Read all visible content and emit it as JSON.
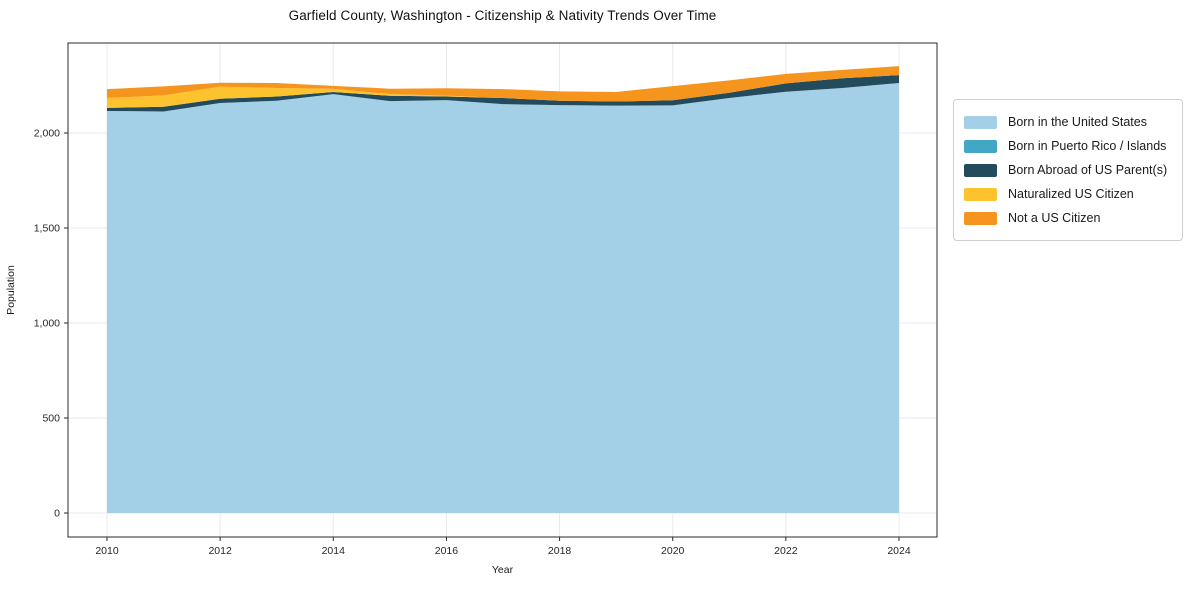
{
  "title": "Garfield County, Washington - Citizenship & Nativity Trends Over Time",
  "chart_data": {
    "type": "area",
    "stacked": true,
    "title": "Garfield County, Washington - Citizenship & Nativity Trends Over Time",
    "xlabel": "Year",
    "ylabel": "Population",
    "x": [
      2010,
      2011,
      2012,
      2013,
      2014,
      2015,
      2016,
      2017,
      2018,
      2019,
      2020,
      2021,
      2022,
      2023,
      2024
    ],
    "x_tick_labels": [
      "2010",
      "2012",
      "2014",
      "2016",
      "2018",
      "2020",
      "2022",
      "2024"
    ],
    "y_ticks": [
      0,
      500,
      1000,
      1500,
      2000
    ],
    "y_tick_labels": [
      "0",
      "500",
      "1,000",
      "1,500",
      "2,000"
    ],
    "ylim": [
      -125,
      2475
    ],
    "grid": true,
    "legend_position": "right",
    "series": [
      {
        "name": "Born in the United States",
        "color": "#A3D0E6",
        "values": [
          2116,
          2113,
          2158,
          2170,
          2205,
          2168,
          2173,
          2152,
          2147,
          2144,
          2145,
          2184,
          2217,
          2237,
          2263
        ]
      },
      {
        "name": "Born in Puerto Rico / Islands",
        "color": "#41A7C4",
        "values": [
          0,
          0,
          0,
          0,
          0,
          0,
          0,
          0,
          0,
          0,
          0,
          0,
          0,
          0,
          0
        ]
      },
      {
        "name": "Born Abroad of US Parent(s)",
        "color": "#234B5C",
        "values": [
          16,
          25,
          22,
          22,
          11,
          28,
          19,
          32,
          23,
          22,
          27,
          28,
          44,
          51,
          42
        ]
      },
      {
        "name": "Naturalized US Citizen",
        "color": "#FDC32F",
        "values": [
          52,
          60,
          63,
          45,
          16,
          9,
          5,
          0,
          0,
          0,
          0,
          0,
          0,
          0,
          0
        ]
      },
      {
        "name": "Not a US Citizen",
        "color": "#F6951E",
        "values": [
          47,
          47,
          21,
          26,
          16,
          28,
          39,
          47,
          49,
          50,
          75,
          65,
          50,
          44,
          47
        ]
      }
    ]
  }
}
